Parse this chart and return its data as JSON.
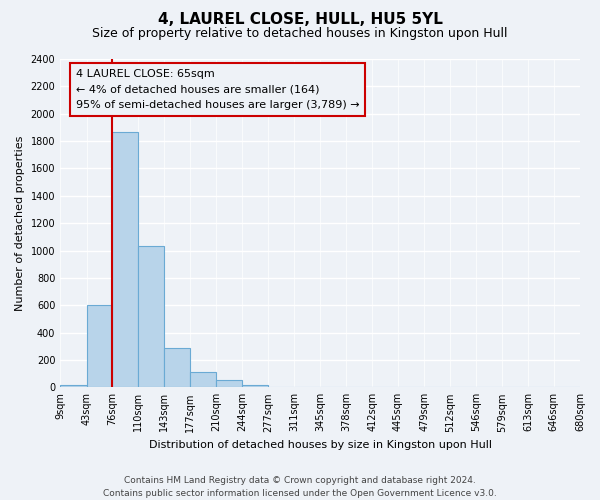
{
  "title": "4, LAUREL CLOSE, HULL, HU5 5YL",
  "subtitle": "Size of property relative to detached houses in Kingston upon Hull",
  "xlabel": "Distribution of detached houses by size in Kingston upon Hull",
  "ylabel": "Number of detached properties",
  "bin_edges": [
    9,
    43,
    76,
    110,
    143,
    177,
    210,
    244,
    277,
    311,
    345,
    378,
    412,
    445,
    479,
    512,
    546,
    579,
    613,
    646,
    680
  ],
  "bin_labels": [
    "9sqm",
    "43sqm",
    "76sqm",
    "110sqm",
    "143sqm",
    "177sqm",
    "210sqm",
    "244sqm",
    "277sqm",
    "311sqm",
    "345sqm",
    "378sqm",
    "412sqm",
    "445sqm",
    "479sqm",
    "512sqm",
    "546sqm",
    "579sqm",
    "613sqm",
    "646sqm",
    "680sqm"
  ],
  "bar_heights": [
    20,
    600,
    1870,
    1030,
    285,
    110,
    50,
    20,
    0,
    0,
    0,
    0,
    0,
    0,
    0,
    0,
    0,
    0,
    0,
    0
  ],
  "bar_color": "#b8d4ea",
  "bar_edge_color": "#6aaad4",
  "vline_position": 2,
  "vline_color": "#cc0000",
  "ylim": [
    0,
    2400
  ],
  "yticks": [
    0,
    200,
    400,
    600,
    800,
    1000,
    1200,
    1400,
    1600,
    1800,
    2000,
    2200,
    2400
  ],
  "annotation_line1": "4 LAUREL CLOSE: 65sqm",
  "annotation_line2": "← 4% of detached houses are smaller (164)",
  "annotation_line3": "95% of semi-detached houses are larger (3,789) →",
  "footer_line1": "Contains HM Land Registry data © Crown copyright and database right 2024.",
  "footer_line2": "Contains public sector information licensed under the Open Government Licence v3.0.",
  "background_color": "#eef2f7",
  "grid_color": "#ffffff",
  "title_fontsize": 11,
  "subtitle_fontsize": 9,
  "axis_label_fontsize": 8,
  "tick_fontsize": 7,
  "annotation_fontsize": 8,
  "footer_fontsize": 6.5
}
